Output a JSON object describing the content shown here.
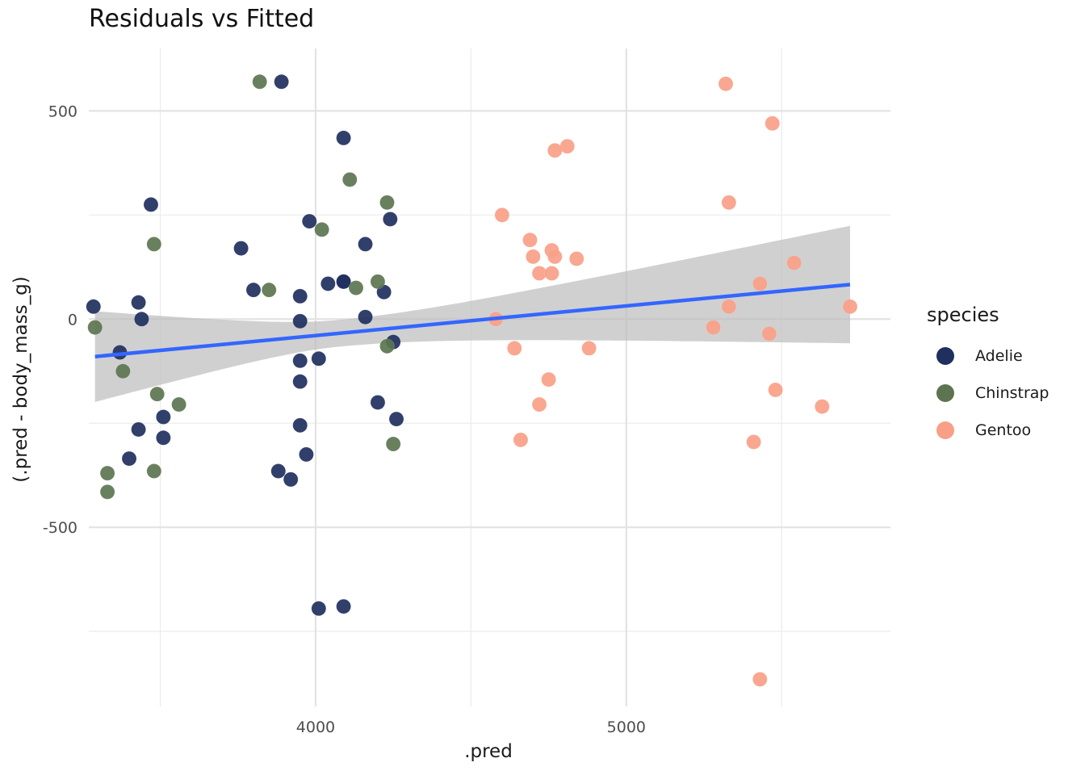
{
  "chart_data": {
    "type": "scatter",
    "title": "Residuals vs Fitted",
    "xlabel": ".pred",
    "ylabel": "(.pred - body_mass_g)",
    "xlim": [
      3270,
      5850
    ],
    "ylim": [
      -930,
      650
    ],
    "x_ticks": [
      4000,
      5000
    ],
    "x_tick_labels": [
      "4000",
      "5000"
    ],
    "y_ticks": [
      500,
      0,
      -500
    ],
    "y_tick_labels": [
      "500",
      "0",
      "-500"
    ],
    "grid": true,
    "legend": {
      "title": "species",
      "placement": "right"
    },
    "series": [
      {
        "name": "Adelie",
        "color": "#1f2f5e",
        "x": [
          3890,
          4090,
          4090,
          3470,
          3760,
          3980,
          4240,
          4160,
          3800,
          3950,
          4040,
          4090,
          4220,
          3430,
          3440,
          3285,
          3950,
          4160,
          4250,
          3950,
          4010,
          3370,
          3430,
          3950,
          4200,
          3510,
          3950,
          4260,
          3510,
          3400,
          3880,
          3970,
          3920,
          4010,
          4090
        ],
        "y": [
          570,
          435,
          90,
          275,
          170,
          235,
          240,
          180,
          70,
          55,
          85,
          90,
          65,
          40,
          0,
          30,
          -5,
          5,
          -55,
          -100,
          -95,
          -80,
          -265,
          -150,
          -200,
          -235,
          -255,
          -240,
          -285,
          -335,
          -365,
          -325,
          -385,
          -695,
          -690
        ]
      },
      {
        "name": "Chinstrap",
        "color": "#5c7550",
        "x": [
          3820,
          4110,
          4230,
          3480,
          4020,
          3850,
          4130,
          4200,
          3290,
          4230,
          3380,
          3490,
          3560,
          3330,
          3480,
          4250,
          3330
        ],
        "y": [
          570,
          335,
          280,
          180,
          215,
          70,
          75,
          90,
          -20,
          -65,
          -125,
          -180,
          -205,
          -370,
          -365,
          -300,
          -415
        ]
      },
      {
        "name": "Gentoo",
        "color": "#f99f87",
        "x": [
          5320,
          5470,
          4810,
          4770,
          5330,
          4600,
          4690,
          4760,
          4700,
          4720,
          4770,
          4840,
          4760,
          5540,
          5430,
          5330,
          5720,
          4580,
          5280,
          5460,
          4640,
          4880,
          4750,
          4720,
          5480,
          5630,
          4660,
          5410,
          5430
        ],
        "y": [
          565,
          470,
          415,
          405,
          280,
          250,
          190,
          165,
          150,
          110,
          150,
          145,
          110,
          135,
          85,
          30,
          30,
          0,
          -20,
          -35,
          -70,
          -70,
          -145,
          -205,
          -170,
          -210,
          -290,
          -295,
          -865
        ]
      }
    ],
    "smooth": {
      "method": "lm",
      "color": "#3366ff",
      "band_color": "#bebebe",
      "x": [
        3290,
        5720
      ],
      "y": [
        -90,
        83
      ],
      "band_upper_at_ends": [
        18,
        225
      ],
      "band_lower_at_ends": [
        -200,
        -57
      ]
    }
  }
}
